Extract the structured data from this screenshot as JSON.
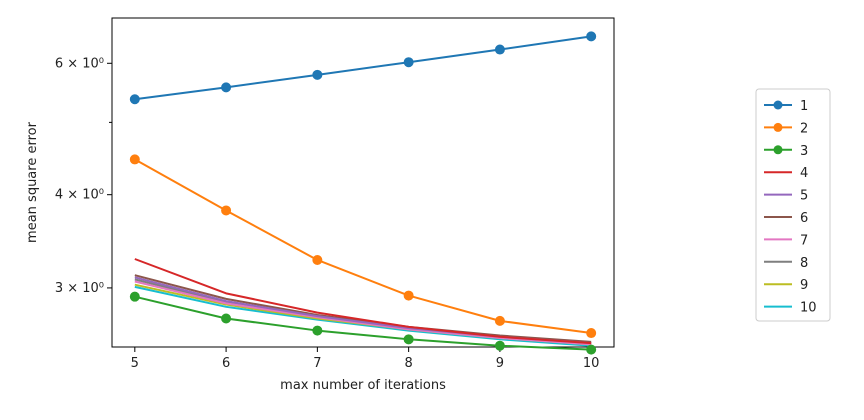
{
  "chart_data": {
    "type": "line",
    "title": "",
    "xlabel": "max number of iterations",
    "ylabel": "mean square error",
    "x": [
      5,
      6,
      7,
      8,
      9,
      10
    ],
    "xlim": [
      4.75,
      10.25
    ],
    "ylim": [
      2.5,
      6.9
    ],
    "yscale": "log",
    "x_ticks": [
      "5",
      "6",
      "7",
      "8",
      "9",
      "10"
    ],
    "y_major_ticks": [
      {
        "value": 3,
        "label": "3 × 10⁰"
      },
      {
        "value": 4,
        "label": "4 × 10⁰"
      },
      {
        "value": 6,
        "label": "6 × 10⁰"
      }
    ],
    "y_minor_ticks": [
      5
    ],
    "grid": false,
    "legend_position": "right, outside plot",
    "series": [
      {
        "name": "1",
        "color": "#1f77b4",
        "marker": true,
        "values": [
          5.37,
          5.57,
          5.79,
          6.02,
          6.26,
          6.52
        ]
      },
      {
        "name": "2",
        "color": "#ff7f0e",
        "marker": true,
        "values": [
          4.46,
          3.81,
          3.27,
          2.93,
          2.71,
          2.61
        ]
      },
      {
        "name": "3",
        "color": "#2ca02c",
        "marker": true,
        "values": [
          2.92,
          2.73,
          2.63,
          2.56,
          2.51,
          2.48
        ]
      },
      {
        "name": "4",
        "color": "#d62728",
        "marker": false,
        "values": [
          3.28,
          2.95,
          2.78,
          2.66,
          2.58,
          2.53
        ]
      },
      {
        "name": "5",
        "color": "#9467bd",
        "marker": false,
        "values": [
          3.1,
          2.88,
          2.75,
          2.65,
          2.58,
          2.53
        ]
      },
      {
        "name": "6",
        "color": "#8c564b",
        "marker": false,
        "values": [
          3.12,
          2.9,
          2.76,
          2.66,
          2.59,
          2.54
        ]
      },
      {
        "name": "7",
        "color": "#e377c2",
        "marker": false,
        "values": [
          3.06,
          2.86,
          2.74,
          2.64,
          2.57,
          2.52
        ]
      },
      {
        "name": "8",
        "color": "#7f7f7f",
        "marker": false,
        "values": [
          3.08,
          2.87,
          2.75,
          2.65,
          2.58,
          2.53
        ]
      },
      {
        "name": "9",
        "color": "#bcbd22",
        "marker": false,
        "values": [
          3.03,
          2.85,
          2.73,
          2.64,
          2.57,
          2.52
        ]
      },
      {
        "name": "10",
        "color": "#17becf",
        "marker": false,
        "values": [
          3.01,
          2.83,
          2.72,
          2.63,
          2.56,
          2.51
        ]
      }
    ]
  }
}
